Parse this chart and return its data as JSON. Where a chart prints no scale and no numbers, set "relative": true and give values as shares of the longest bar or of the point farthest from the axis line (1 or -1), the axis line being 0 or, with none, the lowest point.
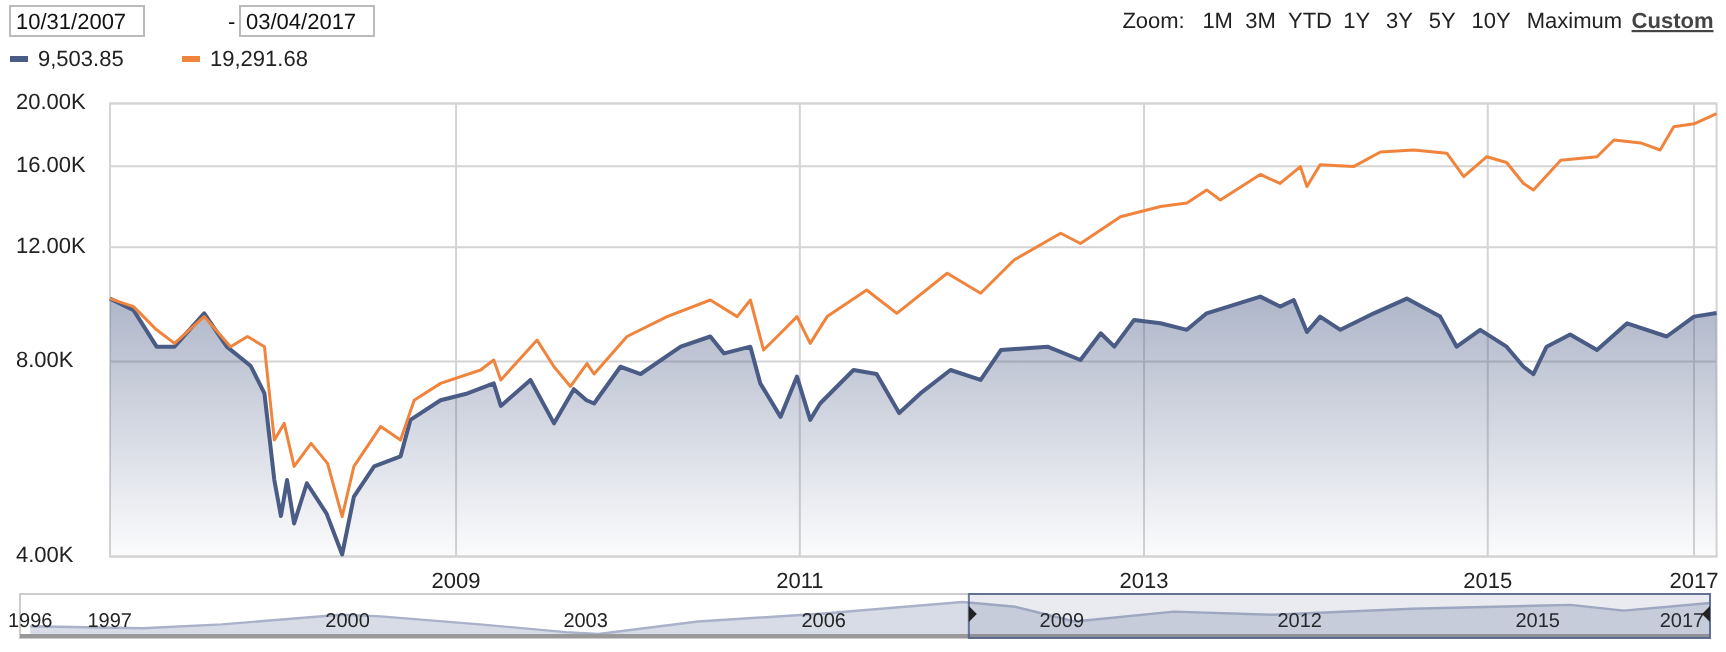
{
  "chart_data": [
    {
      "type": "line",
      "log": true,
      "grid": "xy",
      "ylim": [
        4000,
        20000
      ],
      "yticks": [
        {
          "value": 4000,
          "label": "4.00K"
        },
        {
          "value": 8000,
          "label": "8.00K"
        },
        {
          "value": 12000,
          "label": "12.00K"
        },
        {
          "value": 16000,
          "label": "16.00K"
        },
        {
          "value": 20000,
          "label": "20.00K"
        }
      ],
      "xlim": [
        "2007-10-31",
        "2017-03-04"
      ],
      "xticks": [
        {
          "value": "2009-11-04",
          "label": "2009"
        },
        {
          "value": "2011-11-04",
          "label": "2011"
        },
        {
          "value": "2013-11-04",
          "label": "2013"
        },
        {
          "value": "2015-11-04",
          "label": "2015"
        },
        {
          "value": "2017-01-15",
          "label": "2017"
        }
      ],
      "legend": "top left",
      "annotations": [
        "10/31/2007",
        "-",
        "03/04/2017",
        "Zoom:",
        "1M",
        "3M",
        "YTD",
        "1Y",
        "3Y",
        "5Y",
        "10Y",
        "Maximum",
        "Custom"
      ],
      "series": [
        {
          "type": "area",
          "name": "9,503.85",
          "color": "#4a5b85",
          "x": [
            "2007-10-31",
            "2007-12-20",
            "2008-02-07",
            "2008-03-16",
            "2008-05-18",
            "2008-07-05",
            "2008-08-25",
            "2008-09-23",
            "2008-10-14",
            "2008-10-28",
            "2008-11-10",
            "2008-11-25",
            "2008-12-22",
            "2009-02-02",
            "2009-03-07",
            "2009-04-01",
            "2009-05-14",
            "2009-07-09",
            "2009-07-30",
            "2009-10-02",
            "2009-11-28",
            "2010-01-23",
            "2010-02-07",
            "2010-04-11",
            "2010-05-31",
            "2010-07-12",
            "2010-08-08",
            "2010-08-24",
            "2010-10-19",
            "2010-12-01",
            "2011-02-24",
            "2011-04-28",
            "2011-05-27",
            "2011-07-22",
            "2011-08-12",
            "2011-09-24",
            "2011-10-29",
            "2011-11-26",
            "2011-12-17",
            "2012-02-26",
            "2012-04-15",
            "2012-06-02",
            "2012-07-17",
            "2012-09-19",
            "2012-11-22",
            "2013-01-04",
            "2013-04-13",
            "2013-06-22",
            "2013-08-04",
            "2013-09-02",
            "2013-10-14",
            "2013-12-09",
            "2014-02-03",
            "2014-03-17",
            "2014-07-09",
            "2014-08-20",
            "2014-09-18",
            "2014-10-16",
            "2014-11-13",
            "2014-12-26",
            "2015-03-07",
            "2015-05-16",
            "2015-07-26",
            "2015-08-30",
            "2015-10-19",
            "2015-12-14",
            "2016-01-19",
            "2016-02-09",
            "2016-03-08",
            "2016-04-27",
            "2016-06-23",
            "2016-08-26",
            "2016-11-18",
            "2017-01-15",
            "2017-03-04"
          ],
          "values": [
            10000,
            9600,
            8430,
            8430,
            9490,
            8430,
            7870,
            7140,
            5250,
            4620,
            5250,
            4500,
            5190,
            4660,
            4030,
            4950,
            5510,
            5710,
            6500,
            6970,
            7140,
            7400,
            6830,
            7490,
            6420,
            7250,
            6970,
            6890,
            7850,
            7650,
            8430,
            8740,
            8230,
            8430,
            7400,
            6570,
            7580,
            6500,
            6890,
            7760,
            7650,
            6660,
            7140,
            7760,
            7490,
            8330,
            8430,
            8040,
            8840,
            8430,
            9270,
            9160,
            8950,
            9490,
            10070,
            9720,
            9950,
            8880,
            9380,
            8950,
            9490,
            10000,
            9380,
            8430,
            8950,
            8430,
            7850,
            7650,
            8430,
            8800,
            8330,
            9160,
            8740,
            9380,
            9503.85
          ]
        },
        {
          "name": "19,291.68",
          "color": "#f0843c",
          "x": [
            "2007-10-31",
            "2007-12-20",
            "2008-02-07",
            "2008-03-16",
            "2008-05-18",
            "2008-07-13",
            "2008-08-18",
            "2008-09-23",
            "2008-10-14",
            "2008-11-04",
            "2008-11-25",
            "2008-12-31",
            "2009-02-04",
            "2009-03-07",
            "2009-04-01",
            "2009-05-28",
            "2009-07-09",
            "2009-08-07",
            "2009-10-02",
            "2009-12-26",
            "2010-01-23",
            "2010-02-07",
            "2010-04-25",
            "2010-05-31",
            "2010-07-05",
            "2010-08-09",
            "2010-08-24",
            "2010-11-02",
            "2011-01-26",
            "2011-04-28",
            "2011-06-24",
            "2011-07-22",
            "2011-08-19",
            "2011-09-24",
            "2011-10-29",
            "2011-11-26",
            "2012-01-01",
            "2012-03-25",
            "2012-05-28",
            "2012-09-12",
            "2012-11-22",
            "2013-02-01",
            "2013-05-11",
            "2013-06-22",
            "2013-09-15",
            "2013-12-09",
            "2014-02-03",
            "2014-03-17",
            "2014-04-15",
            "2014-07-09",
            "2014-08-20",
            "2014-10-02",
            "2014-10-16",
            "2014-11-13",
            "2015-01-23",
            "2015-03-21",
            "2015-05-31",
            "2015-08-09",
            "2015-09-14",
            "2015-11-02",
            "2015-12-14",
            "2016-01-19",
            "2016-02-09",
            "2016-04-07",
            "2016-06-23",
            "2016-07-29",
            "2016-09-24",
            "2016-11-04",
            "2016-12-03",
            "2017-01-15",
            "2017-03-04"
          ],
          "values": [
            10000,
            9720,
            8950,
            8530,
            9380,
            8430,
            8740,
            8430,
            6050,
            6420,
            5510,
            5980,
            5570,
            4610,
            5510,
            6350,
            6050,
            6970,
            7400,
            7760,
            8040,
            7490,
            8630,
            7850,
            7320,
            7940,
            7650,
            8740,
            9380,
            9950,
            9380,
            9950,
            8330,
            8840,
            9380,
            8530,
            9380,
            10310,
            9490,
            10940,
            10190,
            11470,
            12610,
            12160,
            13370,
            13870,
            14040,
            14710,
            14190,
            15540,
            15050,
            15980,
            14890,
            16080,
            15980,
            16830,
            16950,
            16760,
            15420,
            16550,
            16210,
            15050,
            14710,
            16350,
            16550,
            17560,
            17380,
            16950,
            18410,
            18600,
            19291.68
          ]
        }
      ]
    },
    {
      "type": "area",
      "relative": true,
      "color": "#a9b2c8",
      "bands": [
        {
          "axis": "x",
          "from": "2007-10-31",
          "to": "2017-03-04",
          "color": "#4a5b85"
        }
      ],
      "xlim": [
        "1995-11-15",
        "2017-03-04"
      ],
      "xticks": [
        {
          "value": "1996-01-01",
          "label": "1996"
        },
        {
          "value": "1997-01-01",
          "label": "1997"
        },
        {
          "value": "2000-01-01",
          "label": "2000"
        },
        {
          "value": "2003-01-01",
          "label": "2003"
        },
        {
          "value": "2006-01-01",
          "label": "2006"
        },
        {
          "value": "2009-01-01",
          "label": "2009"
        },
        {
          "value": "2012-01-01",
          "label": "2012"
        },
        {
          "value": "2015-01-01",
          "label": "2015"
        },
        {
          "value": "2017-01-01",
          "label": "2017"
        }
      ],
      "x": [
        "1996-01-01",
        "1997-06-01",
        "1998-06-01",
        "1999-12-01",
        "2000-06-01",
        "2001-09-01",
        "2002-10-01",
        "2003-03-01",
        "2004-06-01",
        "2006-01-01",
        "2007-10-01",
        "2008-06-01",
        "2009-03-01",
        "2010-06-01",
        "2011-09-01",
        "2013-06-01",
        "2015-06-01",
        "2016-02-01",
        "2017-03-04"
      ],
      "values": [
        0.24,
        0.18,
        0.3,
        0.6,
        0.55,
        0.3,
        0.06,
        0,
        0.39,
        0.64,
        1,
        0.85,
        0.39,
        0.7,
        0.6,
        0.79,
        0.91,
        0.73,
        0.97
      ]
    }
  ]
}
